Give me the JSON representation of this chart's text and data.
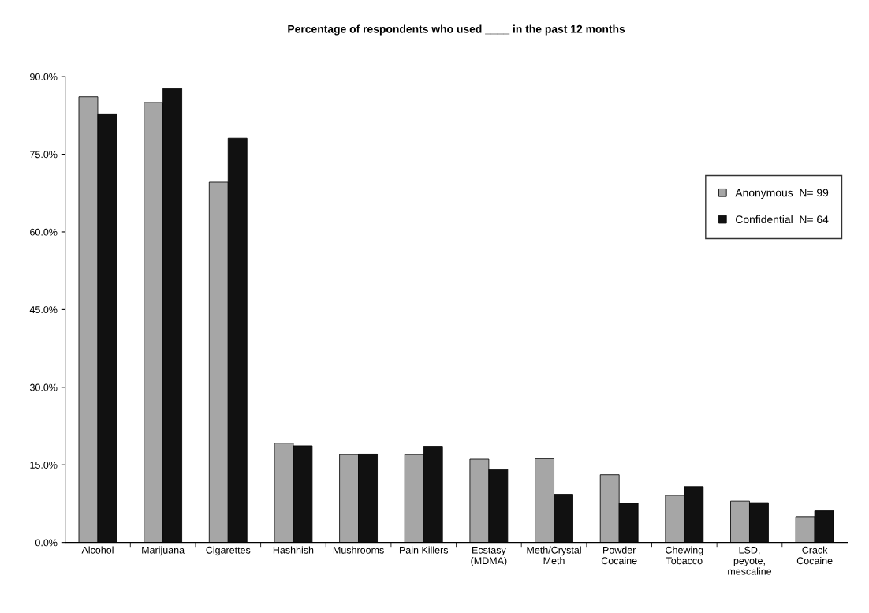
{
  "chart_data": {
    "type": "bar",
    "title": "Percentage of respondents who used ____ in the past 12 months",
    "categories": [
      "Alcohol",
      "Marijuana",
      "Cigarettes",
      "Hashhish",
      "Mushrooms",
      "Pain Killers",
      "Ecstasy\n(MDMA)",
      "Meth/Crystal\nMeth",
      "Powder\nCocaine",
      "Chewing\nTobacco",
      "LSD,\npeyote,\nmescaline",
      "Crack\nCocaine"
    ],
    "series": [
      {
        "name": "Anonymous  N= 99",
        "color": "#a6a6a6",
        "values": [
          86.1,
          85.0,
          69.6,
          19.2,
          17.0,
          17.0,
          16.1,
          16.2,
          13.1,
          9.1,
          8.0,
          5.0
        ]
      },
      {
        "name": "Confidential  N= 64",
        "color": "#111111",
        "values": [
          82.8,
          87.7,
          78.1,
          18.7,
          17.1,
          18.6,
          14.1,
          9.3,
          7.6,
          10.8,
          7.7,
          6.1
        ]
      }
    ],
    "ylim": [
      0,
      90
    ],
    "yticks": [
      {
        "value": 0,
        "label": "0.0%"
      },
      {
        "value": 15,
        "label": "15.0%"
      },
      {
        "value": 30,
        "label": "30.0%"
      },
      {
        "value": 45,
        "label": "45.0%"
      },
      {
        "value": 60,
        "label": "60.0%"
      },
      {
        "value": 75,
        "label": "75.0%"
      },
      {
        "value": 90,
        "label": "90.0%"
      }
    ],
    "grid": false,
    "legend": "right"
  }
}
